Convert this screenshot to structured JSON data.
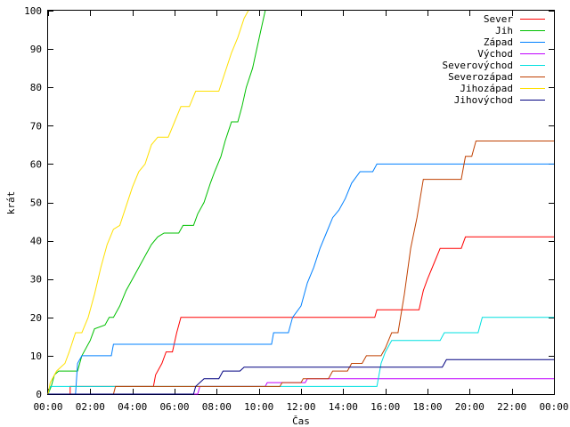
{
  "chart_data": {
    "type": "line",
    "title": "",
    "xlabel": "Čas",
    "ylabel": "krát",
    "xlim": [
      0,
      24
    ],
    "ylim": [
      0,
      100
    ],
    "x_ticks": [
      0,
      2,
      4,
      6,
      8,
      10,
      12,
      14,
      16,
      18,
      20,
      22,
      24
    ],
    "x_tick_labels": [
      "00:00",
      "02:00",
      "04:00",
      "06:00",
      "08:00",
      "10:00",
      "12:00",
      "14:00",
      "16:00",
      "18:00",
      "20:00",
      "22:00",
      "00:00"
    ],
    "y_ticks": [
      0,
      10,
      20,
      30,
      40,
      50,
      60,
      70,
      80,
      90,
      100
    ],
    "y_tick_labels": [
      "0",
      "10",
      "20",
      "30",
      "40",
      "50",
      "60",
      "70",
      "80",
      "90",
      "100"
    ],
    "grid": false,
    "legend_position": "top-right",
    "series": [
      {
        "name": "Sever",
        "color": "#ff0000",
        "points": [
          [
            0,
            0
          ],
          [
            1.05,
            0
          ],
          [
            1.05,
            2
          ],
          [
            5.0,
            2
          ],
          [
            5.1,
            5
          ],
          [
            5.4,
            8
          ],
          [
            5.6,
            11
          ],
          [
            5.9,
            11
          ],
          [
            6.1,
            16
          ],
          [
            6.3,
            20
          ],
          [
            15.5,
            20
          ],
          [
            15.6,
            22
          ],
          [
            17.6,
            22
          ],
          [
            17.8,
            27
          ],
          [
            18.0,
            30
          ],
          [
            18.3,
            34
          ],
          [
            18.6,
            38
          ],
          [
            19.6,
            38
          ],
          [
            19.8,
            41
          ],
          [
            24,
            41
          ]
        ]
      },
      {
        "name": "Jih",
        "color": "#00c000",
        "points": [
          [
            0,
            0
          ],
          [
            0.15,
            2
          ],
          [
            0.3,
            5
          ],
          [
            0.5,
            6
          ],
          [
            1.4,
            6
          ],
          [
            1.6,
            10
          ],
          [
            2.0,
            14
          ],
          [
            2.2,
            17
          ],
          [
            2.7,
            18
          ],
          [
            2.9,
            20
          ],
          [
            3.1,
            20
          ],
          [
            3.4,
            23
          ],
          [
            3.7,
            27
          ],
          [
            4.0,
            30
          ],
          [
            4.3,
            33
          ],
          [
            4.6,
            36
          ],
          [
            4.9,
            39
          ],
          [
            5.2,
            41
          ],
          [
            5.5,
            42
          ],
          [
            6.2,
            42
          ],
          [
            6.4,
            44
          ],
          [
            6.9,
            44
          ],
          [
            7.1,
            47
          ],
          [
            7.4,
            50
          ],
          [
            7.7,
            55
          ],
          [
            7.9,
            58
          ],
          [
            8.2,
            62
          ],
          [
            8.4,
            66
          ],
          [
            8.7,
            71
          ],
          [
            9.0,
            71
          ],
          [
            9.2,
            75
          ],
          [
            9.4,
            80
          ],
          [
            9.7,
            85
          ],
          [
            9.9,
            90
          ],
          [
            10.1,
            95
          ],
          [
            10.3,
            100
          ]
        ]
      },
      {
        "name": "Západ",
        "color": "#0080ff",
        "points": [
          [
            0,
            0
          ],
          [
            1.3,
            0
          ],
          [
            1.4,
            8
          ],
          [
            1.6,
            10
          ],
          [
            3.0,
            10
          ],
          [
            3.1,
            13
          ],
          [
            10.6,
            13
          ],
          [
            10.7,
            16
          ],
          [
            11.4,
            16
          ],
          [
            11.6,
            20
          ],
          [
            12.0,
            23
          ],
          [
            12.3,
            29
          ],
          [
            12.6,
            33
          ],
          [
            12.9,
            38
          ],
          [
            13.2,
            42
          ],
          [
            13.5,
            46
          ],
          [
            13.8,
            48
          ],
          [
            14.1,
            51
          ],
          [
            14.4,
            55
          ],
          [
            14.8,
            58
          ],
          [
            15.4,
            58
          ],
          [
            15.6,
            60
          ],
          [
            24,
            60
          ]
        ]
      },
      {
        "name": "Východ",
        "color": "#c000ff",
        "points": [
          [
            0,
            0
          ],
          [
            7.1,
            0
          ],
          [
            7.2,
            2
          ],
          [
            10.3,
            2
          ],
          [
            10.4,
            3
          ],
          [
            12.2,
            3
          ],
          [
            12.3,
            4
          ],
          [
            24,
            4
          ]
        ]
      },
      {
        "name": "Severovýchod",
        "color": "#00e0e0",
        "points": [
          [
            0,
            0
          ],
          [
            0.1,
            2
          ],
          [
            15.6,
            2
          ],
          [
            15.8,
            8
          ],
          [
            16.0,
            11
          ],
          [
            16.3,
            14
          ],
          [
            18.6,
            14
          ],
          [
            18.8,
            16
          ],
          [
            20.4,
            16
          ],
          [
            20.6,
            20
          ],
          [
            24,
            20
          ]
        ]
      },
      {
        "name": "Severozápad",
        "color": "#c04000",
        "points": [
          [
            0,
            0
          ],
          [
            3.1,
            0
          ],
          [
            3.2,
            2
          ],
          [
            11.0,
            2
          ],
          [
            11.1,
            3
          ],
          [
            12.0,
            3
          ],
          [
            12.1,
            4
          ],
          [
            13.3,
            4
          ],
          [
            13.5,
            6
          ],
          [
            14.2,
            6
          ],
          [
            14.4,
            8
          ],
          [
            14.9,
            8
          ],
          [
            15.1,
            10
          ],
          [
            15.8,
            10
          ],
          [
            16.0,
            12
          ],
          [
            16.3,
            16
          ],
          [
            16.6,
            16
          ],
          [
            16.9,
            26
          ],
          [
            17.2,
            38
          ],
          [
            17.5,
            46
          ],
          [
            17.8,
            56
          ],
          [
            19.6,
            56
          ],
          [
            19.8,
            62
          ],
          [
            20.1,
            62
          ],
          [
            20.3,
            66
          ],
          [
            24,
            66
          ]
        ]
      },
      {
        "name": "Jihozápad",
        "color": "#ffe000",
        "points": [
          [
            0,
            0
          ],
          [
            0.1,
            3
          ],
          [
            0.4,
            6
          ],
          [
            0.8,
            8
          ],
          [
            1.0,
            11
          ],
          [
            1.3,
            16
          ],
          [
            1.6,
            16
          ],
          [
            1.9,
            20
          ],
          [
            2.2,
            26
          ],
          [
            2.5,
            33
          ],
          [
            2.8,
            39
          ],
          [
            3.1,
            43
          ],
          [
            3.4,
            44
          ],
          [
            3.7,
            49
          ],
          [
            4.0,
            54
          ],
          [
            4.3,
            58
          ],
          [
            4.6,
            60
          ],
          [
            4.9,
            65
          ],
          [
            5.2,
            67
          ],
          [
            5.7,
            67
          ],
          [
            6.0,
            71
          ],
          [
            6.3,
            75
          ],
          [
            6.7,
            75
          ],
          [
            7.0,
            79
          ],
          [
            8.1,
            79
          ],
          [
            8.4,
            84
          ],
          [
            8.7,
            89
          ],
          [
            9.0,
            93
          ],
          [
            9.3,
            98
          ],
          [
            9.5,
            100
          ]
        ]
      },
      {
        "name": "Jihovýchod",
        "color": "#000080",
        "points": [
          [
            0,
            0
          ],
          [
            6.9,
            0
          ],
          [
            7.0,
            2
          ],
          [
            7.4,
            4
          ],
          [
            8.1,
            4
          ],
          [
            8.3,
            6
          ],
          [
            9.1,
            6
          ],
          [
            9.3,
            7
          ],
          [
            18.7,
            7
          ],
          [
            18.9,
            9
          ],
          [
            24,
            9
          ]
        ]
      }
    ]
  }
}
